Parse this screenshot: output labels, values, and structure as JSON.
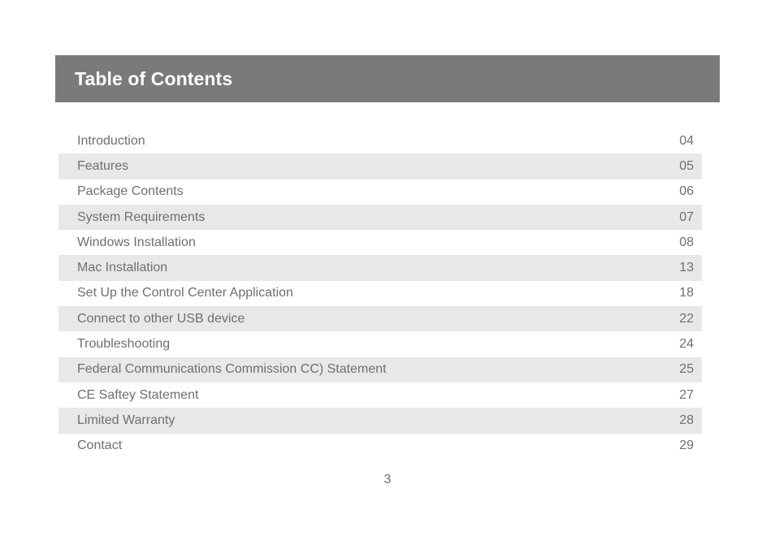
{
  "header": {
    "title": "Table of Contents"
  },
  "toc": {
    "entries": [
      {
        "title": "Introduction",
        "page": "04"
      },
      {
        "title": "Features",
        "page": "05"
      },
      {
        "title": "Package Contents",
        "page": "06"
      },
      {
        "title": "System Requirements",
        "page": "07"
      },
      {
        "title": "Windows Installation",
        "page": "08"
      },
      {
        "title": "Mac Installation",
        "page": "13"
      },
      {
        "title": "Set Up the Control Center Application",
        "page": "18"
      },
      {
        "title": "Connect to other USB device",
        "page": "22"
      },
      {
        "title": "Troubleshooting",
        "page": "24"
      },
      {
        "title": "Federal Communications Commission CC) Statement",
        "page": "25"
      },
      {
        "title": "CE Saftey Statement",
        "page": "27"
      },
      {
        "title": "Limited Warranty",
        "page": "28"
      },
      {
        "title": "Contact",
        "page": "29"
      }
    ]
  },
  "footer": {
    "page_number": "3"
  },
  "colors": {
    "header_background": "#7a7b78",
    "stripe_background": "#e8e8e7",
    "text": "#6f706d"
  }
}
